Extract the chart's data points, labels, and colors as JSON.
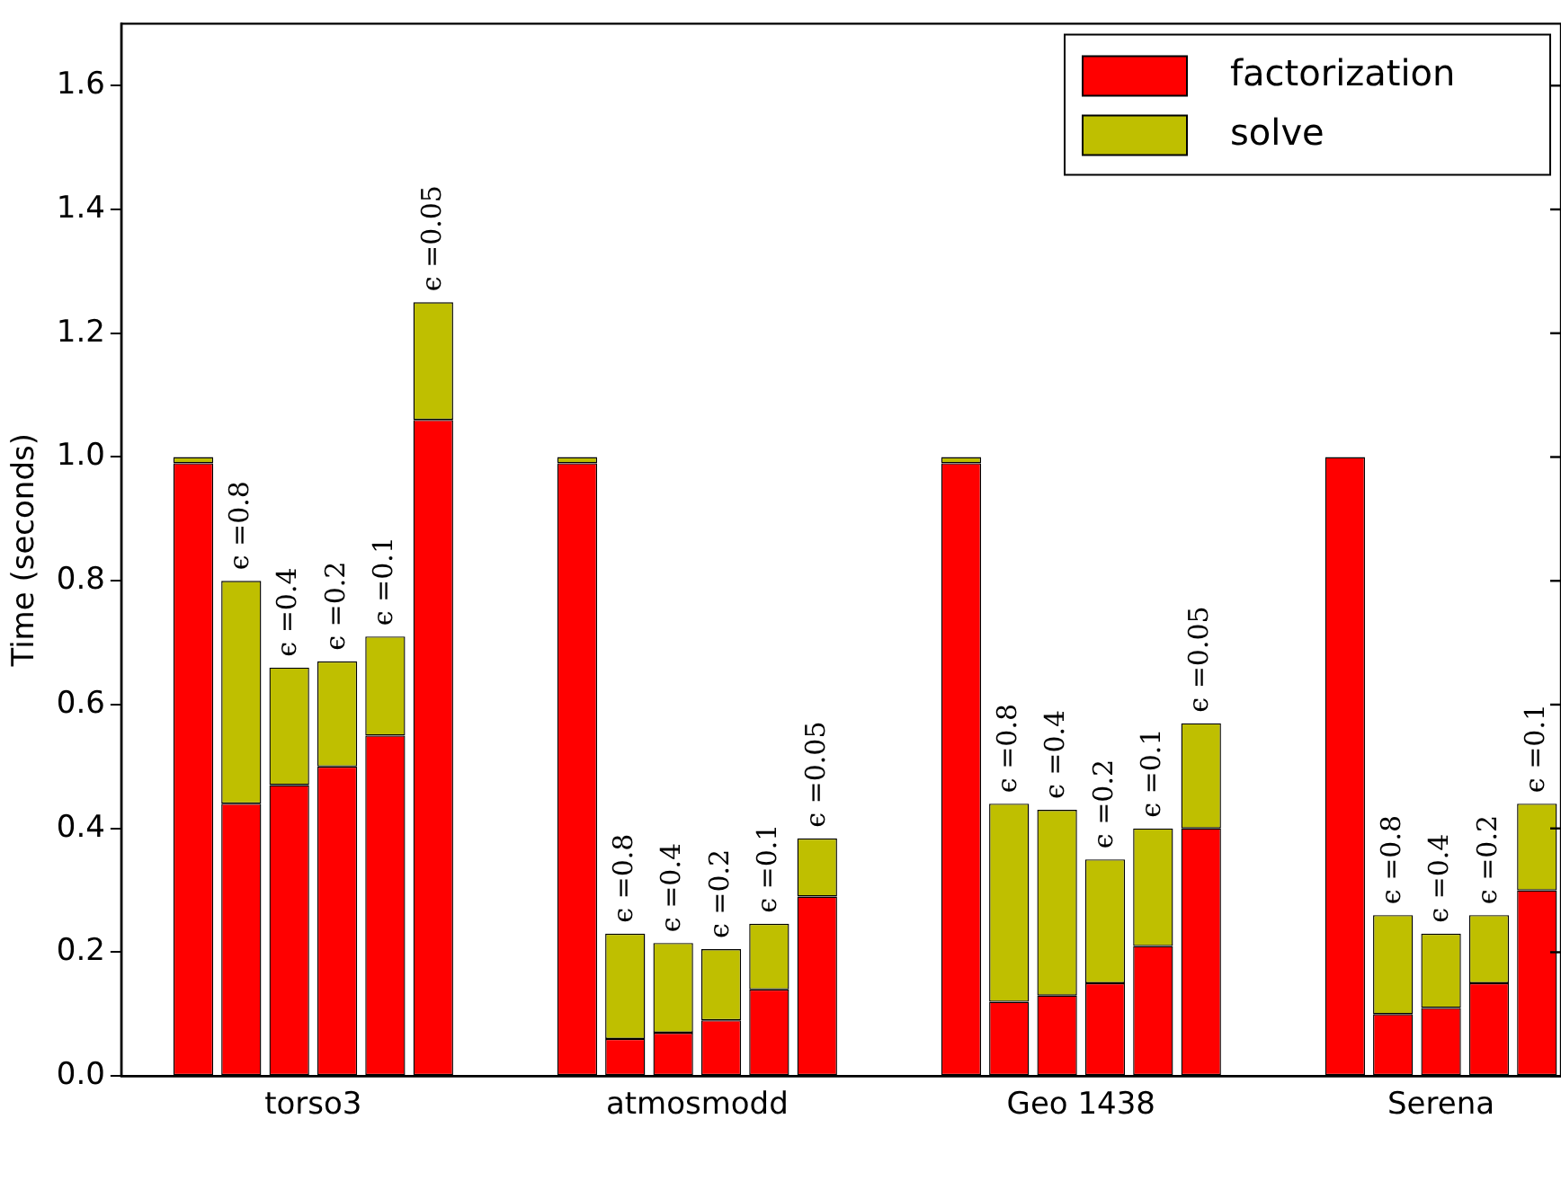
{
  "chart_data": {
    "type": "bar",
    "stacked": true,
    "ylabel": "Time (seconds)",
    "categories": [
      null,
      null,
      "ϵ =0.8",
      "ϵ =0.4",
      "ϵ =0.2",
      "ϵ =0.1",
      "ϵ =0.05",
      null,
      null,
      null,
      "ϵ =0.8",
      "ϵ =0.4",
      "ϵ =0.2",
      "ϵ =0.1",
      "ϵ =0.05",
      null,
      null,
      null,
      "ϵ =0.8",
      "ϵ =0.4",
      "ϵ =0.2",
      "ϵ =0.1",
      "ϵ =0.05",
      null,
      null,
      null,
      "ϵ =0.8",
      "ϵ =0.4",
      "ϵ =0.2",
      "ϵ =0.1"
    ],
    "series": [
      {
        "name": "factorization",
        "color": "#ff0000",
        "values": [
          null,
          0.99,
          0.44,
          0.47,
          0.5,
          0.55,
          1.06,
          null,
          null,
          0.99,
          0.06,
          0.07,
          0.09,
          0.14,
          0.29,
          null,
          null,
          0.99,
          0.12,
          0.13,
          0.15,
          0.21,
          0.4,
          null,
          null,
          1.0,
          0.1,
          0.11,
          0.15,
          0.3
        ]
      },
      {
        "name": "solve",
        "color": "#bfbf00",
        "values": [
          null,
          0.01,
          0.36,
          0.19,
          0.17,
          0.16,
          0.19,
          null,
          null,
          0.01,
          0.17,
          0.145,
          0.115,
          0.106,
          0.094,
          null,
          null,
          0.01,
          0.32,
          0.3,
          0.2,
          0.19,
          0.17,
          null,
          null,
          null,
          0.16,
          0.12,
          0.11,
          0.14
        ]
      }
    ],
    "ylim": [
      0,
      1.7
    ],
    "yticks": [
      {
        "value": 0,
        "label": "0.0"
      },
      {
        "value": 0.2,
        "label": "0.2"
      },
      {
        "value": 0.4,
        "label": "0.4"
      },
      {
        "value": 0.6,
        "label": "0.6"
      },
      {
        "value": 0.8,
        "label": "0.8"
      },
      {
        "value": 1.0,
        "label": "1.0"
      },
      {
        "value": 1.2,
        "label": "1.2"
      },
      {
        "value": 1.4,
        "label": "1.4"
      },
      {
        "value": 1.6,
        "label": "1.6"
      }
    ],
    "annotations": [
      "torso3",
      "atmosmodd",
      "Geo 1438",
      "Serena"
    ],
    "legend": "top right"
  }
}
